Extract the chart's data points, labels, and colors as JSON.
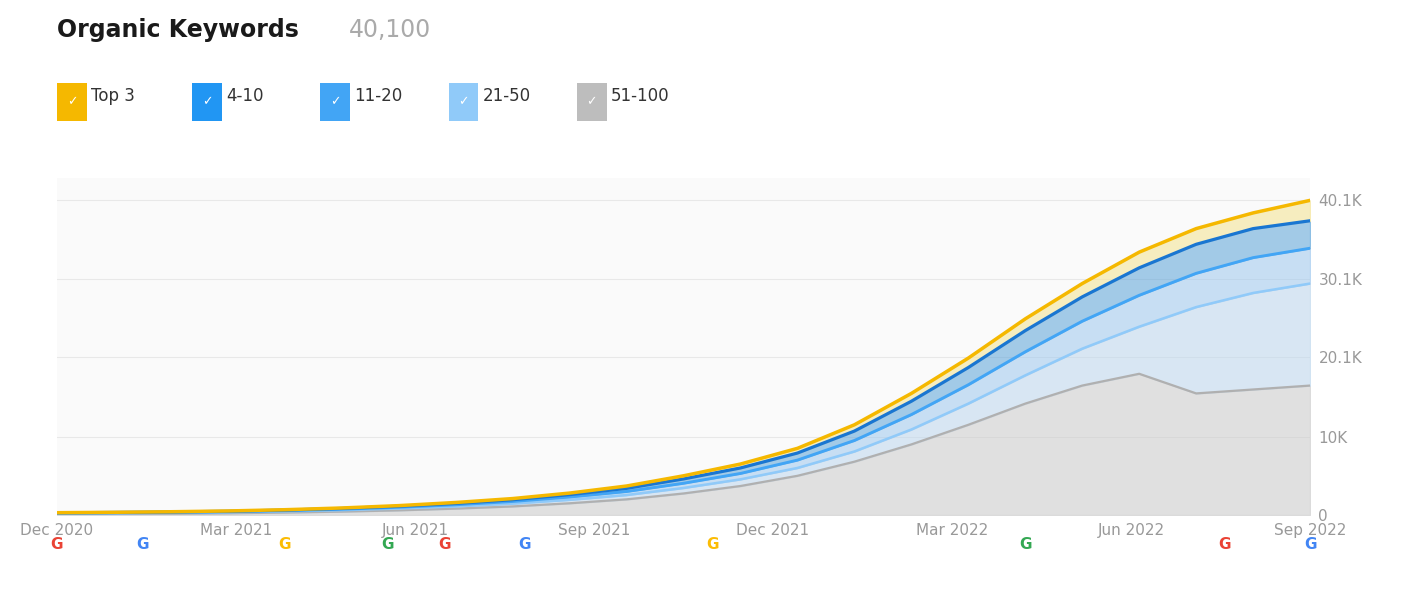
{
  "title_bold": "Organic Keywords",
  "title_number": "40,100",
  "legend_items": [
    "Top 3",
    "4-10",
    "11-20",
    "21-50",
    "51-100"
  ],
  "legend_colors": [
    "#F5B800",
    "#2196F3",
    "#42A5F5",
    "#90CAF9",
    "#BDBDBD"
  ],
  "line_colors": [
    "#F5B800",
    "#1976D2",
    "#42A5F5",
    "#90CAF9",
    "#B0B0B0"
  ],
  "x_labels": [
    "Dec 2020",
    "Mar 2021",
    "Jun 2021",
    "Sep 2021",
    "Dec 2021",
    "Mar 2022",
    "Jun 2022",
    "Sep 2022"
  ],
  "y_ticks": [
    0,
    10000,
    20100,
    30100,
    40100
  ],
  "y_tick_labels": [
    "0",
    "10K",
    "20.1K",
    "30.1K",
    "40.1K"
  ],
  "ylim": [
    0,
    43000
  ],
  "background_color": "#FFFFFF",
  "n_points": 23,
  "series_top3": [
    300,
    350,
    420,
    520,
    680,
    900,
    1200,
    1600,
    2100,
    2800,
    3700,
    5000,
    6500,
    8500,
    11500,
    15500,
    20000,
    25000,
    29500,
    33500,
    36500,
    38500,
    40100
  ],
  "series_4to10": [
    280,
    330,
    390,
    480,
    630,
    840,
    1120,
    1480,
    1950,
    2600,
    3400,
    4600,
    6000,
    7900,
    10700,
    14500,
    18800,
    23500,
    27800,
    31500,
    34500,
    36500,
    37500
  ],
  "series_11to20": [
    240,
    280,
    340,
    420,
    560,
    740,
    990,
    1310,
    1730,
    2300,
    3000,
    4050,
    5300,
    7000,
    9500,
    12800,
    16600,
    20800,
    24700,
    28000,
    30800,
    32800,
    34000
  ],
  "series_21to50": [
    200,
    230,
    280,
    350,
    470,
    620,
    830,
    1100,
    1460,
    1940,
    2550,
    3450,
    4550,
    6000,
    8100,
    10900,
    14200,
    17800,
    21200,
    24000,
    26500,
    28300,
    29500
  ],
  "series_51to100": [
    100,
    130,
    170,
    230,
    320,
    440,
    600,
    820,
    1100,
    1500,
    2000,
    2750,
    3700,
    5000,
    6800,
    9000,
    11500,
    14200,
    16500,
    18000,
    15500,
    16000,
    16500
  ],
  "google_event_positions": [
    0,
    1.5,
    4.0,
    5.8,
    6.8,
    8.2,
    11.5,
    17.0,
    20.5,
    22.0
  ],
  "google_event_colors": [
    "#EA4335",
    "#4285F4",
    "#FBBC05",
    "#34A853",
    "#EA4335",
    "#4285F4",
    "#FBBC05",
    "#34A853",
    "#EA4335",
    "#4285F4"
  ],
  "gridline_color": "#E8E8E8"
}
